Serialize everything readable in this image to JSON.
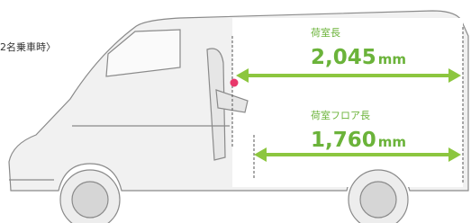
{
  "caption": "2名乗車時〉",
  "dimensions": [
    {
      "label": "荷室長",
      "value": "2,045",
      "unit": "mm"
    },
    {
      "label": "荷室フロア長",
      "value": "1,760",
      "unit": "mm"
    }
  ]
}
